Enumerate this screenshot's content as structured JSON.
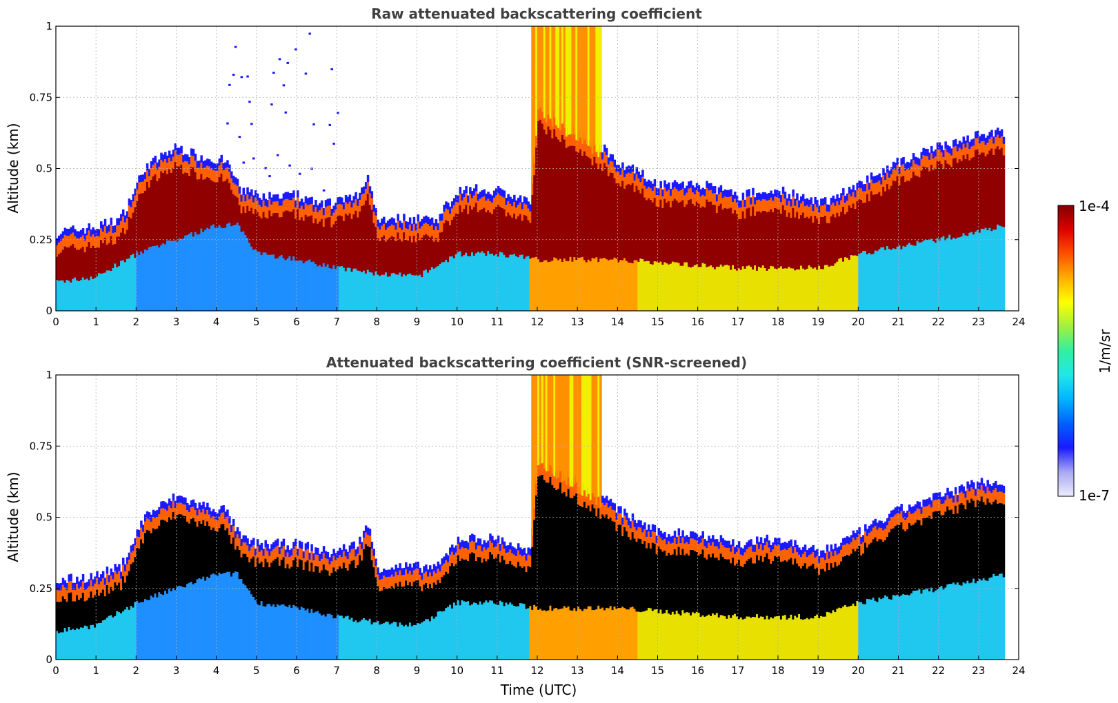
{
  "chart_data": [
    {
      "type": "heatmap",
      "title": "Raw attenuated backscattering coefficient",
      "xlabel": "",
      "ylabel": "Altitude (km)",
      "xlim": [
        0,
        24
      ],
      "ylim": [
        0,
        1
      ],
      "x_ticks": [
        "0",
        "1",
        "2",
        "3",
        "4",
        "5",
        "6",
        "7",
        "8",
        "9",
        "10",
        "11",
        "12",
        "13",
        "14",
        "15",
        "16",
        "17",
        "18",
        "19",
        "20",
        "21",
        "22",
        "23",
        "24"
      ],
      "y_ticks": [
        "0",
        "0.25",
        "0.5",
        "0.75",
        "1"
      ],
      "grid": true,
      "data_end_time": 23.65,
      "layer_top_km": [
        [
          0,
          0.25
        ],
        [
          1,
          0.27
        ],
        [
          1.6,
          0.3
        ],
        [
          2.2,
          0.48
        ],
        [
          3,
          0.55
        ],
        [
          3.5,
          0.52
        ],
        [
          4.2,
          0.5
        ],
        [
          4.6,
          0.4
        ],
        [
          5,
          0.38
        ],
        [
          6,
          0.38
        ],
        [
          6.8,
          0.35
        ],
        [
          7.5,
          0.38
        ],
        [
          7.75,
          0.45
        ],
        [
          8,
          0.3
        ],
        [
          9,
          0.3
        ],
        [
          9.5,
          0.3
        ],
        [
          10,
          0.4
        ],
        [
          11,
          0.4
        ],
        [
          11.8,
          0.35
        ],
        [
          12,
          0.7
        ],
        [
          13,
          0.6
        ],
        [
          13.6,
          0.55
        ],
        [
          14,
          0.5
        ],
        [
          15,
          0.42
        ],
        [
          16,
          0.42
        ],
        [
          17,
          0.38
        ],
        [
          18,
          0.4
        ],
        [
          19,
          0.35
        ],
        [
          20,
          0.42
        ],
        [
          21,
          0.5
        ],
        [
          22,
          0.55
        ],
        [
          23,
          0.6
        ],
        [
          23.65,
          0.6
        ]
      ],
      "layer_base_km": [
        [
          0,
          0.1
        ],
        [
          1,
          0.12
        ],
        [
          2,
          0.2
        ],
        [
          3,
          0.25
        ],
        [
          4,
          0.3
        ],
        [
          4.5,
          0.3
        ],
        [
          5,
          0.2
        ],
        [
          6,
          0.18
        ],
        [
          7,
          0.15
        ],
        [
          8,
          0.13
        ],
        [
          9,
          0.12
        ],
        [
          10,
          0.2
        ],
        [
          11,
          0.2
        ],
        [
          12,
          0.18
        ],
        [
          14,
          0.18
        ],
        [
          16,
          0.16
        ],
        [
          17,
          0.15
        ],
        [
          18,
          0.15
        ],
        [
          19,
          0.15
        ],
        [
          20,
          0.2
        ],
        [
          22,
          0.25
        ],
        [
          23.65,
          0.3
        ]
      ]
    },
    {
      "type": "heatmap",
      "title": "Attenuated backscattering coefficient (SNR-screened)",
      "xlabel": "Time (UTC)",
      "ylabel": "Altitude (km)",
      "xlim": [
        0,
        24
      ],
      "ylim": [
        0,
        1
      ],
      "x_ticks": [
        "0",
        "1",
        "2",
        "3",
        "4",
        "5",
        "6",
        "7",
        "8",
        "9",
        "10",
        "11",
        "12",
        "13",
        "14",
        "15",
        "16",
        "17",
        "18",
        "19",
        "20",
        "21",
        "22",
        "23",
        "24"
      ],
      "y_ticks": [
        "0",
        "0.25",
        "0.5",
        "0.75",
        "1"
      ],
      "grid": true,
      "data_end_time": 23.65
    }
  ],
  "colorbar": {
    "label": "1/m/sr",
    "max_label": "1e-4",
    "min_label": "1e-7",
    "colormap": [
      "#ececfc",
      "#a8a8f4",
      "#1a1aff",
      "#0060ff",
      "#00b4ff",
      "#20e8e8",
      "#30f0a0",
      "#a0f040",
      "#ffff00",
      "#ffb000",
      "#ff5000",
      "#e00000",
      "#800000"
    ]
  }
}
